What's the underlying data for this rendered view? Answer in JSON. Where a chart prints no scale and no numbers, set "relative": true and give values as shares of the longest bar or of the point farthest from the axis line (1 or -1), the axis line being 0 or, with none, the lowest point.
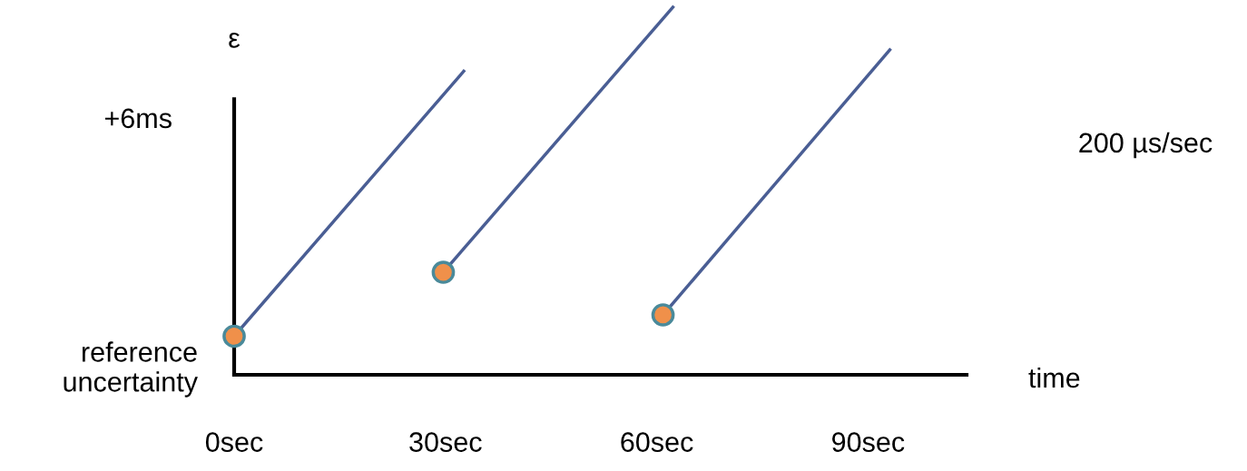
{
  "chart_data": {
    "type": "line",
    "ylabel": "ε",
    "xlabel": "time",
    "annotations": [
      "+6ms",
      "reference\nuncertainty",
      "200 µs/sec"
    ],
    "relative": true,
    "xlim": [
      0,
      104
    ],
    "xticks": [
      {
        "value": 0,
        "label": "0sec"
      },
      {
        "value": 30,
        "label": "30sec"
      },
      {
        "value": 60,
        "label": "60sec"
      },
      {
        "value": 90,
        "label": "90sec"
      }
    ],
    "marker": "circle",
    "line_style": "solid",
    "series": [
      {
        "color": "#4a5e94",
        "x": [
          0,
          32.6
        ],
        "values": [
          0.105,
          0.826
        ]
      },
      {
        "color": "#4a5e94",
        "x": [
          29.7,
          62.3
        ],
        "values": [
          0.279,
          1
        ]
      },
      {
        "color": "#4a5e94",
        "x": [
          60.9,
          93.1
        ],
        "values": [
          0.163,
          0.884
        ]
      }
    ]
  }
}
